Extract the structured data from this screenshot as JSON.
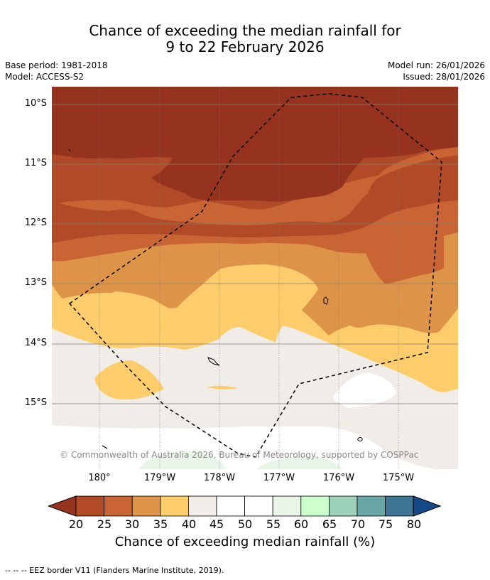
{
  "title": {
    "line1": "Chance of exceeding the median rainfall for",
    "line2": "9 to 22 February 2026"
  },
  "meta": {
    "base_period": "Base period: 1981-2018",
    "model": "Model: ACCESS-S2",
    "model_run": "Model run: 26/01/2026",
    "issued": "Issued: 28/01/2026"
  },
  "map": {
    "lat_labels": [
      "10°S",
      "11°S",
      "12°S",
      "13°S",
      "14°S",
      "15°S"
    ],
    "lon_labels": [
      "180°",
      "179°W",
      "178°W",
      "177°W",
      "176°W",
      "175°W"
    ],
    "copyright": "© Commonwealth of Australia 2026, Bureau of Meteorology, supported by COSPPac",
    "zone_colors": {
      "lt20": "#96331f",
      "20_25": "#b04a27",
      "25_30": "#c96534",
      "30_35": "#de9448",
      "35_40": "#fdcd6b",
      "40_45": "#f0ece7",
      "45_55": "#ffffff",
      "55_60": "#eaf5ea"
    }
  },
  "colorbar": {
    "ticks": [
      "20",
      "25",
      "30",
      "35",
      "40",
      "45",
      "50",
      "55",
      "60",
      "65",
      "70",
      "75",
      "80"
    ],
    "colors": [
      "#b04a27",
      "#c96534",
      "#de9448",
      "#fdcd6b",
      "#f0ece7",
      "#ffffff",
      "#ffffff",
      "#eaf5ea",
      "#ccffcc",
      "#9dd0b8",
      "#6aa5a5",
      "#3f7494"
    ],
    "low_color": "#96331f",
    "high_color": "#164a86",
    "label": "Chance of exceeding median rainfall (%)"
  },
  "footer": "--  --  -- EEZ border V11 (Flanders Marine Institute, 2019)."
}
